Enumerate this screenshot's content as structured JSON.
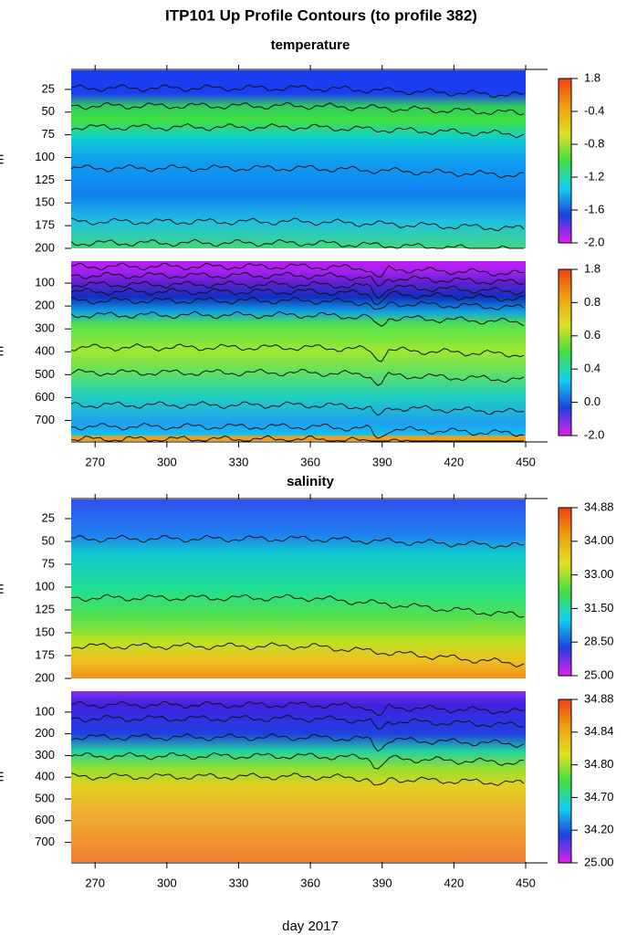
{
  "title": "ITP101 Up Profile Contours (to profile 382)",
  "xlabel": "day 2017",
  "chart_data": [
    {
      "type": "contour",
      "title": "temperature",
      "ylabel": "m",
      "ylim": [
        4,
        200
      ],
      "yticks": [
        25,
        50,
        75,
        100,
        125,
        150,
        175,
        200
      ],
      "colorscale": [
        "#f04010",
        "#f0a010",
        "#e0e020",
        "#40e040",
        "#10d0f0",
        "#2040e0",
        "#e020f0"
      ],
      "colorbar_ticks": [
        1.8,
        -0.4,
        -0.8,
        -1.2,
        -1.6,
        {
          "value": -2,
          "label": "-2.0"
        }
      ]
    },
    {
      "type": "contour",
      "ylabel": "m",
      "ylim": [
        4,
        790
      ],
      "yticks": [
        100,
        200,
        300,
        400,
        500,
        600,
        700
      ],
      "xlim": [
        260,
        450
      ],
      "xticks": [
        270,
        300,
        330,
        360,
        390,
        420,
        450
      ],
      "colorscale": [
        "#f04010",
        "#f0a010",
        "#e0e020",
        "#40e040",
        "#10d0f0",
        "#2040e0",
        "#e020f0"
      ],
      "colorbar_ticks": [
        1.8,
        0.8,
        0.6,
        0.4,
        {
          "value": 0,
          "label": "0.0"
        },
        {
          "value": -2,
          "label": "-2.0"
        }
      ]
    },
    {
      "type": "contour",
      "title": "salinity",
      "ylabel": "m",
      "ylim": [
        4,
        200
      ],
      "yticks": [
        25,
        50,
        75,
        100,
        125,
        150,
        175,
        200
      ],
      "colorscale": [
        "#f04010",
        "#f0a010",
        "#e0e020",
        "#40e040",
        "#10d0f0",
        "#2040e0",
        "#e020f0"
      ],
      "colorbar_ticks": [
        34.88,
        {
          "value": 34,
          "label": "34.00"
        },
        {
          "value": 33,
          "label": "33.00"
        },
        {
          "value": 31.5,
          "label": "31.50"
        },
        {
          "value": 28.5,
          "label": "28.50"
        },
        {
          "value": 25,
          "label": "25.00"
        }
      ]
    },
    {
      "type": "contour",
      "ylabel": "m",
      "ylim": [
        4,
        790
      ],
      "yticks": [
        100,
        200,
        300,
        400,
        500,
        600,
        700
      ],
      "xlim": [
        260,
        450
      ],
      "xticks": [
        270,
        300,
        330,
        360,
        390,
        420,
        450
      ],
      "colorscale": [
        "#f04010",
        "#f0a010",
        "#e0e020",
        "#40e040",
        "#10d0f0",
        "#2040e0",
        "#e020f0"
      ],
      "colorbar_ticks": [
        34.88,
        34.84,
        {
          "value": 34.8,
          "label": "34.80"
        },
        {
          "value": 34.7,
          "label": "34.70"
        },
        {
          "value": 34.2,
          "label": "34.20"
        },
        {
          "value": 25,
          "label": "25.00"
        }
      ]
    }
  ]
}
